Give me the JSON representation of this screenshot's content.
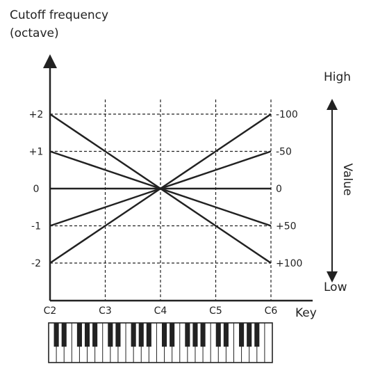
{
  "chart_data": {
    "type": "line",
    "title": "Cutoff frequency",
    "title_line2": "(octave)",
    "xlabel": "Key",
    "categories": [
      "C2",
      "C3",
      "C4",
      "C5",
      "C6"
    ],
    "x_values": [
      0,
      1,
      2,
      3,
      4
    ],
    "xlim": [
      0,
      4
    ],
    "ylim": [
      -3,
      3
    ],
    "y_ticks": [
      2,
      1,
      0,
      -1,
      -2
    ],
    "y_tick_labels": [
      "+2",
      "+1",
      "0",
      "-1",
      "-2"
    ],
    "grid": "dashed",
    "series": [
      {
        "values": [
          2,
          1,
          0,
          -1,
          -2
        ]
      },
      {
        "values": [
          1,
          0.5,
          0,
          -0.5,
          -1
        ]
      },
      {
        "values": [
          0,
          0,
          0,
          0,
          0
        ]
      },
      {
        "values": [
          -1,
          -0.5,
          0,
          0.5,
          1
        ]
      },
      {
        "values": [
          -2,
          -1,
          0,
          1,
          2
        ]
      }
    ],
    "right_labels": [
      "+100",
      "+50",
      "0",
      "-50",
      "-100"
    ],
    "value_axis": {
      "label": "Value",
      "high": "High",
      "low": "Low"
    }
  }
}
